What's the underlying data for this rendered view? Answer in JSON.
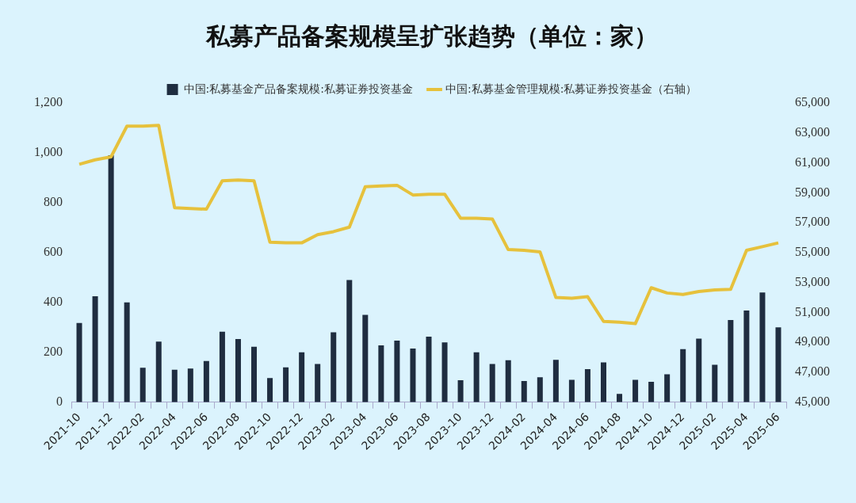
{
  "chart_data": {
    "type": "bar",
    "title": "私募产品备案规模呈扩张趋势（单位：家）",
    "categories": [
      "2021-10",
      null,
      "2021-12",
      null,
      "2022-02",
      null,
      "2022-04",
      null,
      "2022-06",
      null,
      "2022-08",
      null,
      "2022-10",
      null,
      "2022-12",
      null,
      "2023-02",
      null,
      "2023-04",
      null,
      "2023-06",
      null,
      "2023-08",
      null,
      "2023-10",
      null,
      "2023-12",
      null,
      "2024-02",
      null,
      "2024-04",
      null,
      "2024-06",
      null,
      "2024-08",
      null,
      "2024-10",
      null,
      "2024-12",
      null,
      "2025-02",
      null,
      "2025-04",
      null,
      "2025-06"
    ],
    "series": [
      {
        "name": "中国:私募基金产品备案规模:私募证券投资基金",
        "color": "#1f2d40",
        "values": [
          318,
          425,
          990,
          400,
          138,
          243,
          130,
          135,
          165,
          283,
          253,
          222,
          97,
          140,
          200,
          153,
          280,
          490,
          350,
          228,
          247,
          215,
          263,
          240,
          88,
          200,
          153,
          168,
          85,
          100,
          170,
          90,
          133,
          160,
          33,
          90,
          82,
          112,
          213,
          255,
          150,
          330,
          368,
          440,
          300
        ]
      },
      {
        "name": "中国:私募基金管理规模:私募证券投资基金（右轴）",
        "type": "line",
        "axis": "y2",
        "color": "#e6c13c",
        "values": [
          60900,
          61200,
          61400,
          63450,
          63450,
          63500,
          58000,
          57950,
          57900,
          59800,
          59850,
          59800,
          55700,
          55650,
          55650,
          56200,
          56400,
          56700,
          59400,
          59450,
          59500,
          58850,
          58900,
          58900,
          57300,
          57300,
          57250,
          55200,
          55150,
          55050,
          52000,
          51950,
          52050,
          50400,
          50350,
          50250,
          52650,
          52300,
          52200,
          52400,
          52500,
          52550,
          55150,
          55400,
          55650
        ]
      }
    ],
    "ylim": [
      0,
      1200
    ],
    "yticks": [
      0,
      200,
      400,
      600,
      800,
      {
        "value": 1000,
        "label": "1,000"
      },
      {
        "value": 1200,
        "label": "1,200"
      }
    ],
    "y2lim": [
      45000,
      65000
    ],
    "y2ticks": [
      {
        "value": 45000,
        "label": "45,000"
      },
      {
        "value": 47000,
        "label": "47,000"
      },
      {
        "value": 49000,
        "label": "49,000"
      },
      {
        "value": 51000,
        "label": "51,000"
      },
      {
        "value": 53000,
        "label": "53,000"
      },
      {
        "value": 55000,
        "label": "55,000"
      },
      {
        "value": 57000,
        "label": "57,000"
      },
      {
        "value": 59000,
        "label": "59,000"
      },
      {
        "value": 61000,
        "label": "61,000"
      },
      {
        "value": 63000,
        "label": "63,000"
      },
      {
        "value": 65000,
        "label": "65,000"
      }
    ],
    "legend": "top"
  }
}
